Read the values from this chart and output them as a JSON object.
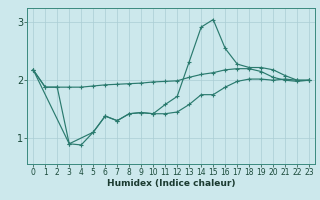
{
  "xlabel": "Humidex (Indice chaleur)",
  "bg_color": "#cce8ec",
  "grid_color": "#aacdd4",
  "line_color": "#2a7a6e",
  "xlim": [
    -0.5,
    23.5
  ],
  "ylim": [
    0.55,
    3.25
  ],
  "yticks": [
    1,
    2,
    3
  ],
  "xticks": [
    0,
    1,
    2,
    3,
    4,
    5,
    6,
    7,
    8,
    9,
    10,
    11,
    12,
    13,
    14,
    15,
    16,
    17,
    18,
    19,
    20,
    21,
    22,
    23
  ],
  "line1_x": [
    0,
    1,
    2,
    3,
    4,
    5,
    6,
    7,
    8,
    9,
    10,
    11,
    12,
    13,
    14,
    15,
    16,
    17,
    18,
    19,
    20,
    21,
    22,
    23
  ],
  "line1_y": [
    2.18,
    1.88,
    1.88,
    1.88,
    1.88,
    1.9,
    1.92,
    1.93,
    1.94,
    1.95,
    1.97,
    1.98,
    1.99,
    2.05,
    2.1,
    2.13,
    2.18,
    2.2,
    2.2,
    2.15,
    2.05,
    2.0,
    1.98,
    2.0
  ],
  "line2_x": [
    0,
    1,
    2,
    3,
    4,
    5,
    6,
    7,
    8,
    9,
    10,
    11,
    12,
    13,
    14,
    15,
    16,
    17,
    18,
    19,
    20,
    21,
    22,
    23
  ],
  "line2_y": [
    2.18,
    1.88,
    1.88,
    0.9,
    0.88,
    1.1,
    1.38,
    1.3,
    1.42,
    1.44,
    1.42,
    1.42,
    1.45,
    1.58,
    1.75,
    1.75,
    1.88,
    1.98,
    2.02,
    2.02,
    2.0,
    2.02,
    2.0,
    2.0
  ],
  "line3_x": [
    0,
    3,
    5,
    6,
    7,
    8,
    9,
    10,
    11,
    12,
    13,
    14,
    15,
    16,
    17,
    18,
    19,
    20,
    21,
    22,
    23
  ],
  "line3_y": [
    2.18,
    0.9,
    1.1,
    1.38,
    1.3,
    1.42,
    1.44,
    1.42,
    1.58,
    1.72,
    2.32,
    2.92,
    3.05,
    2.55,
    2.28,
    2.22,
    2.22,
    2.18,
    2.08,
    2.0,
    2.0
  ]
}
